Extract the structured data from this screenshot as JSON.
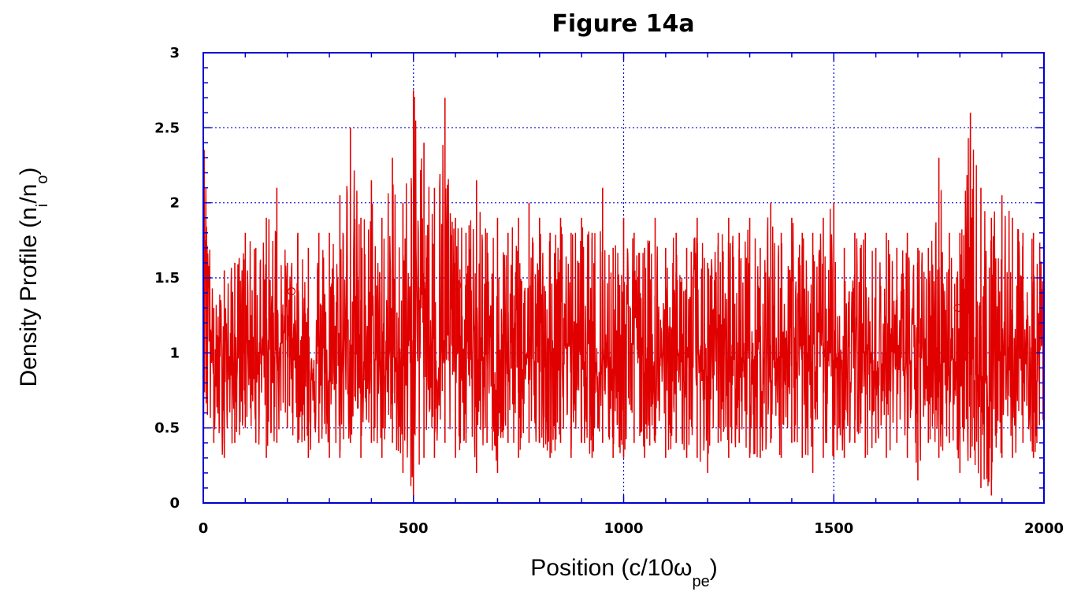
{
  "chart_data": {
    "type": "line",
    "title": "Figure 14a",
    "xlabel": {
      "main": "Position (c/10ω",
      "sub": "pe",
      "close": ")"
    },
    "ylabel": {
      "main": "Density Profile (n",
      "sub1": "i",
      "mid": "/n",
      "sub2": "o",
      "close": ")"
    },
    "xlim": [
      0,
      2000
    ],
    "ylim": [
      0,
      3
    ],
    "x_ticks": [
      0,
      500,
      1000,
      1500,
      2000
    ],
    "x_tick_labels": [
      "0",
      "500",
      "1000",
      "1500",
      "2000"
    ],
    "y_ticks": [
      0,
      0.5,
      1,
      1.5,
      2,
      2.5,
      3
    ],
    "y_tick_labels": [
      "0",
      "0.5",
      "1",
      "1.5",
      "2",
      "2.5",
      "3"
    ],
    "grid": true,
    "colors": {
      "series": "#e00000",
      "axes": "#0000cc",
      "grid": "#0000cc"
    },
    "series": [
      {
        "x": [
          0,
          25,
          50,
          75,
          100,
          125,
          150,
          175,
          200,
          225,
          250,
          275,
          300,
          325,
          350,
          375,
          400,
          425,
          450,
          475,
          500,
          525,
          550,
          575,
          600,
          625,
          650,
          675,
          700,
          725,
          750,
          775,
          800,
          825,
          850,
          875,
          900,
          925,
          950,
          975,
          1000,
          1025,
          1050,
          1075,
          1100,
          1125,
          1150,
          1175,
          1200,
          1225,
          1250,
          1275,
          1300,
          1325,
          1350,
          1375,
          1400,
          1425,
          1450,
          1475,
          1500,
          1525,
          1550,
          1575,
          1600,
          1625,
          1650,
          1675,
          1700,
          1725,
          1750,
          1775,
          1800,
          1825,
          1850,
          1875,
          1900,
          1925,
          1950,
          1975,
          2000
        ],
        "ymin": [
          0.3,
          0.4,
          0.3,
          0.4,
          0.5,
          0.4,
          0.3,
          0.4,
          0.5,
          0.4,
          0.3,
          0.4,
          0.3,
          0.3,
          0.4,
          0.3,
          0.4,
          0.3,
          0.4,
          0.2,
          0.05,
          0.3,
          0.3,
          0.4,
          0.3,
          0.4,
          0.2,
          0.4,
          0.2,
          0.4,
          0.3,
          0.4,
          0.4,
          0.3,
          0.4,
          0.3,
          0.4,
          0.3,
          0.4,
          0.3,
          0.3,
          0.4,
          0.3,
          0.4,
          0.3,
          0.4,
          0.3,
          0.3,
          0.2,
          0.4,
          0.3,
          0.4,
          0.3,
          0.3,
          0.4,
          0.3,
          0.4,
          0.3,
          0.2,
          0.3,
          0.3,
          0.3,
          0.4,
          0.3,
          0.4,
          0.3,
          0.4,
          0.3,
          0.15,
          0.4,
          0.3,
          0.4,
          0.2,
          0.3,
          0.1,
          0.05,
          0.3,
          0.3,
          0.4,
          0.3,
          0.5
        ],
        "ymax": [
          2.55,
          1.3,
          1.55,
          1.6,
          1.8,
          1.7,
          1.9,
          2.1,
          1.6,
          1.8,
          1.7,
          1.8,
          1.8,
          2.05,
          2.5,
          1.9,
          2.15,
          1.9,
          2.3,
          2.0,
          2.75,
          2.4,
          2.1,
          2.7,
          1.9,
          1.8,
          2.15,
          1.8,
          1.9,
          1.8,
          1.9,
          2.0,
          1.9,
          1.8,
          1.9,
          1.8,
          1.9,
          1.8,
          2.1,
          1.7,
          1.9,
          1.8,
          1.7,
          1.9,
          1.7,
          1.8,
          1.7,
          1.9,
          1.6,
          1.8,
          1.9,
          1.8,
          1.9,
          1.7,
          2.0,
          1.8,
          1.9,
          1.8,
          1.8,
          1.9,
          2.0,
          1.7,
          1.8,
          1.8,
          1.7,
          1.8,
          1.7,
          1.8,
          1.7,
          1.7,
          2.3,
          1.8,
          1.8,
          2.6,
          2.1,
          1.9,
          2.05,
          1.9,
          1.8,
          1.8,
          1.8
        ],
        "ycenter": [
          2.1,
          0.8,
          1.0,
          0.9,
          1.1,
          1.0,
          1.0,
          1.0,
          1.2,
          1.0,
          0.9,
          1.0,
          0.8,
          1.0,
          1.1,
          0.9,
          1.0,
          0.9,
          1.0,
          0.9,
          1.0,
          1.5,
          0.9,
          1.1,
          1.0,
          1.0,
          0.9,
          1.0,
          0.8,
          1.0,
          0.9,
          1.0,
          0.9,
          1.0,
          1.0,
          1.1,
          1.0,
          0.9,
          1.0,
          0.9,
          1.0,
          1.1,
          1.0,
          0.9,
          1.0,
          1.0,
          0.9,
          1.0,
          0.9,
          1.0,
          1.0,
          0.9,
          1.0,
          1.0,
          0.9,
          1.0,
          1.1,
          1.0,
          0.9,
          1.0,
          1.0,
          0.9,
          1.0,
          1.0,
          0.9,
          1.0,
          1.0,
          0.9,
          1.0,
          0.9,
          1.0,
          1.0,
          0.9,
          1.0,
          0.8,
          0.9,
          1.0,
          0.9,
          1.0,
          0.9,
          1.1
        ]
      }
    ],
    "markers": [
      {
        "x": 210,
        "y": 1.41
      },
      {
        "x": 605,
        "y": 1.45
      },
      {
        "x": 1795,
        "y": 1.3
      }
    ]
  }
}
